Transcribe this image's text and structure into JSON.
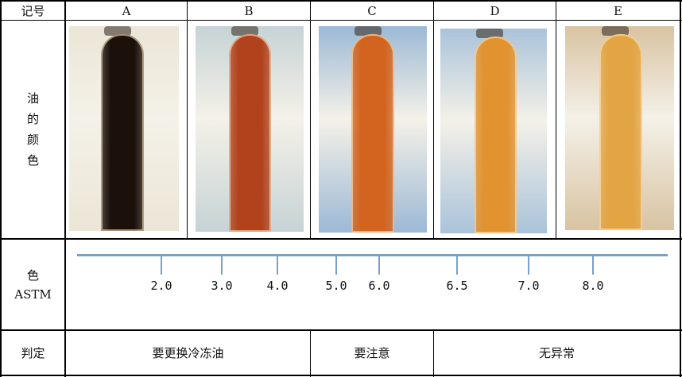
{
  "header": {
    "label": "记号",
    "samples": [
      "A",
      "B",
      "C",
      "D",
      "E"
    ]
  },
  "color_row": {
    "label_chars": [
      "油",
      "的",
      "颜",
      "色"
    ]
  },
  "samples": [
    {
      "id": "A",
      "tube_color": "#1c100b",
      "bg_color": "#ebe6d6"
    },
    {
      "id": "B",
      "tube_color": "#b2421c",
      "bg_color": "#c6d3d6"
    },
    {
      "id": "C",
      "tube_color": "#d2641f",
      "bg_color": "#9cb9d6"
    },
    {
      "id": "D",
      "tube_color": "#e2922f",
      "bg_color": "#aac3da"
    },
    {
      "id": "E",
      "tube_color": "#e3a443",
      "bg_color": "#d9c3a2"
    }
  ],
  "astm_row": {
    "label_line1": "色",
    "label_line2": "ASTM",
    "ticks": [
      "2.0",
      "3.0",
      "4.0",
      "5.0",
      "6.0",
      "6.5",
      "7.0",
      "8.0"
    ],
    "scale_color": "#7aa0c8"
  },
  "judgment_row": {
    "label": "判定",
    "verdicts": [
      "要更换冷冻油",
      "要注意",
      "无异常"
    ]
  }
}
